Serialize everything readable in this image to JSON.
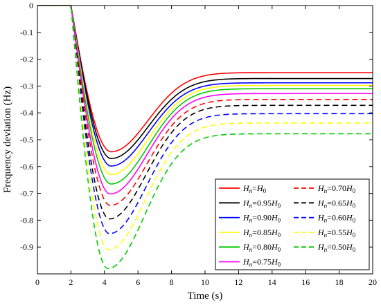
{
  "chart_data": {
    "type": "line",
    "title": "",
    "xlabel": "Time (s)",
    "ylabel": "Frequency deviation (Hz)",
    "xlim": [
      0,
      20
    ],
    "ylim": [
      -1.0,
      0
    ],
    "xticks": [
      "0",
      "2",
      "4",
      "6",
      "8",
      "10",
      "12",
      "14",
      "16",
      "18",
      "20"
    ],
    "yticks": [
      "0",
      "-0.1",
      "-0.2",
      "-0.3",
      "-0.4",
      "-0.5",
      "-0.6",
      "-0.7",
      "-0.8",
      "-0.9"
    ],
    "grid": false,
    "legend_position": "lower-right",
    "disturbance_time": 2.0,
    "series": [
      {
        "name": "Hn=H0",
        "color": "#ff0000",
        "dash": "solid",
        "nadir": -0.545,
        "nadir_time": 4.4,
        "steady": -0.25
      },
      {
        "name": "Hn=0.95H0",
        "color": "#000000",
        "dash": "solid",
        "nadir": -0.57,
        "nadir_time": 4.4,
        "steady": -0.272
      },
      {
        "name": "Hn=0.90H0",
        "color": "#0000ff",
        "dash": "solid",
        "nadir": -0.598,
        "nadir_time": 4.4,
        "steady": -0.288
      },
      {
        "name": "Hn=0.85H0",
        "color": "#ffff00",
        "dash": "solid",
        "nadir": -0.63,
        "nadir_time": 4.4,
        "steady": -0.298
      },
      {
        "name": "Hn=0.80H0",
        "color": "#00cc00",
        "dash": "solid",
        "nadir": -0.665,
        "nadir_time": 4.4,
        "steady": -0.31
      },
      {
        "name": "Hn=0.75H0",
        "color": "#ff00ff",
        "dash": "solid",
        "nadir": -0.702,
        "nadir_time": 4.35,
        "steady": -0.328
      },
      {
        "name": "Hn=0.70H0",
        "color": "#ff0000",
        "dash": "dashed",
        "nadir": -0.745,
        "nadir_time": 4.35,
        "steady": -0.35
      },
      {
        "name": "Hn=0.65H0",
        "color": "#000000",
        "dash": "dashed",
        "nadir": -0.795,
        "nadir_time": 4.3,
        "steady": -0.372
      },
      {
        "name": "Hn=0.60H0",
        "color": "#0000ff",
        "dash": "dashed",
        "nadir": -0.85,
        "nadir_time": 4.3,
        "steady": -0.403
      },
      {
        "name": "Hn=0.55H0",
        "color": "#ffff00",
        "dash": "dashed",
        "nadir": -0.91,
        "nadir_time": 4.25,
        "steady": -0.438
      },
      {
        "name": "Hn=0.50H0",
        "color": "#00cc00",
        "dash": "dashed",
        "nadir": -0.98,
        "nadir_time": 4.2,
        "steady": -0.478
      }
    ],
    "legend": [
      {
        "label": "Hn=H0",
        "sub": "n",
        "sub2": "0",
        "coef": "",
        "color": "#ff0000",
        "dash": "solid"
      },
      {
        "label": "Hn=0.70H0",
        "sub": "n",
        "sub2": "0",
        "coef": "0.70",
        "color": "#ff0000",
        "dash": "dashed"
      },
      {
        "label": "Hn=0.95H0",
        "sub": "n",
        "sub2": "0",
        "coef": "0.95",
        "color": "#000000",
        "dash": "solid"
      },
      {
        "label": "Hn=0.65H0",
        "sub": "n",
        "sub2": "0",
        "coef": "0.65",
        "color": "#000000",
        "dash": "dashed"
      },
      {
        "label": "Hn=0.90H0",
        "sub": "n",
        "sub2": "0",
        "coef": "0.90",
        "color": "#0000ff",
        "dash": "solid"
      },
      {
        "label": "Hn=0.60H0",
        "sub": "n",
        "sub2": "0",
        "coef": "0.60",
        "color": "#0000ff",
        "dash": "dashed"
      },
      {
        "label": "Hn=0.85H0",
        "sub": "n",
        "sub2": "0",
        "coef": "0.85",
        "color": "#ffff00",
        "dash": "solid"
      },
      {
        "label": "Hn=0.55H0",
        "sub": "n",
        "sub2": "0",
        "coef": "0.55",
        "color": "#ffff00",
        "dash": "dashed"
      },
      {
        "label": "Hn=0.80H0",
        "sub": "n",
        "sub2": "0",
        "coef": "0.80",
        "color": "#00cc00",
        "dash": "solid"
      },
      {
        "label": "Hn=0.50H0",
        "sub": "n",
        "sub2": "0",
        "coef": "0.50",
        "color": "#00cc00",
        "dash": "dashed"
      },
      {
        "label": "Hn=0.75H0",
        "sub": "n",
        "sub2": "0",
        "coef": "0.75",
        "color": "#ff00ff",
        "dash": "solid"
      }
    ]
  }
}
